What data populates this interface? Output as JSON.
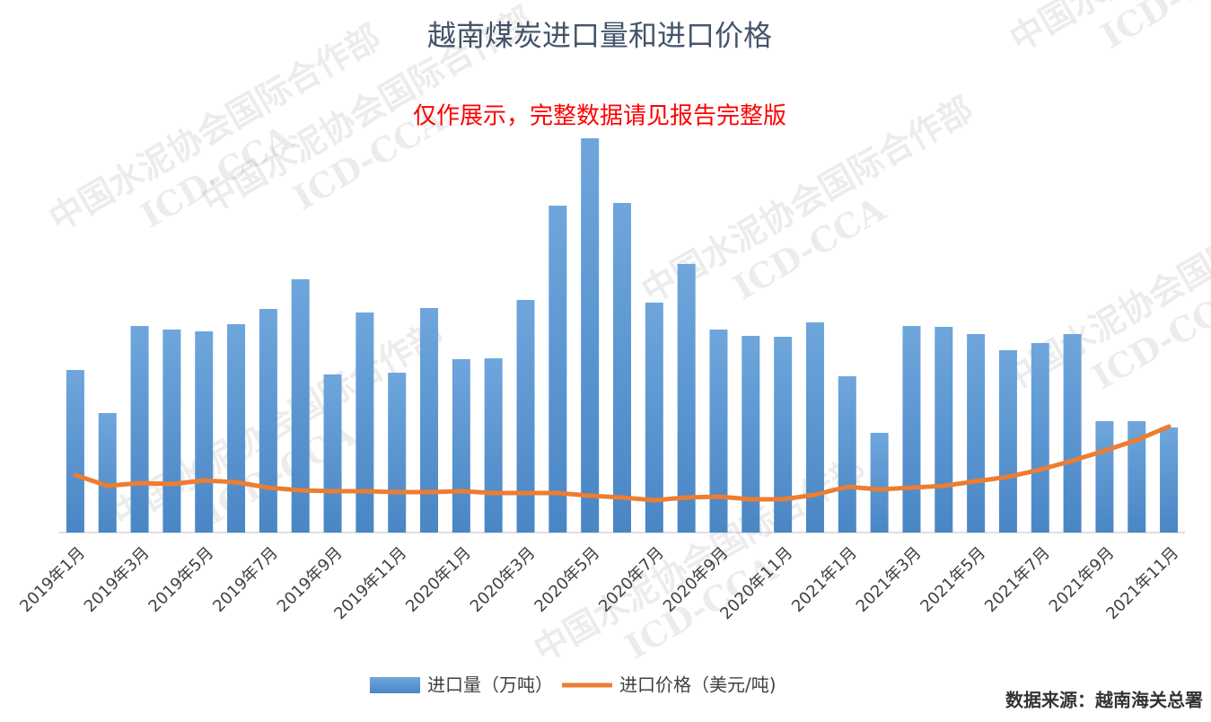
{
  "chart_data": {
    "type": "bar-line",
    "title": "越南煤炭进口量和进口价格",
    "annotation": "仅作展示，完整数据请见报告完整版",
    "source": "数据来源：越南海关总署",
    "watermark": [
      "中国水泥协会国际合作部",
      "ICD-CCA"
    ],
    "categories": [
      "2019年1月",
      null,
      "2019年3月",
      null,
      "2019年5月",
      null,
      "2019年7月",
      null,
      "2019年9月",
      null,
      "2019年11月",
      null,
      "2020年1月",
      null,
      "2020年3月",
      null,
      "2020年5月",
      null,
      "2020年7月",
      null,
      "2020年9月",
      null,
      "2020年11月",
      null,
      "2021年1月",
      null,
      "2021年3月",
      null,
      "2021年5月",
      null,
      "2021年7月",
      null,
      "2021年9月",
      null,
      "2021年11月"
    ],
    "series": [
      {
        "name": "进口量（万吨）",
        "type": "bar",
        "color": "#5b9bd5",
        "values": [
          181,
          133,
          230,
          226,
          224,
          232,
          249,
          282,
          176,
          245,
          178,
          250,
          193,
          194,
          259,
          364,
          439,
          367,
          256,
          299,
          226,
          219,
          218,
          234,
          174,
          111,
          230,
          229,
          221,
          203,
          211,
          221,
          124,
          124,
          117
        ]
      },
      {
        "name": "进口价格（美元/吨)",
        "type": "line",
        "color": "#ed7d31",
        "values": [
          64,
          52,
          55,
          54,
          58,
          56,
          50,
          47,
          46,
          46,
          45,
          45,
          46,
          44,
          44,
          44,
          41,
          39,
          36,
          39,
          40,
          37,
          37,
          42,
          51,
          48,
          50,
          52,
          57,
          62,
          70,
          80,
          91,
          103,
          118
        ]
      }
    ],
    "ylim": [
      0,
      443
    ]
  }
}
